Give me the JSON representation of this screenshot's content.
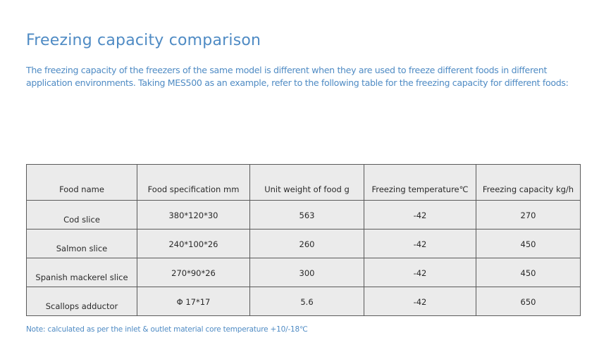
{
  "title": "Freezing capacity comparison",
  "intro": {
    "line1": "The freezing capacity of the freezers of the same model is different when they are used to freeze different foods in different",
    "line2": "application environments. Taking MES500 as an example, refer to the following table for the freezing capacity for different foods:"
  },
  "table": {
    "headers": [
      "Food name",
      "Food specification mm",
      "Unit weight of food g",
      "Freezing temperature℃",
      "Freezing capacity kg/h"
    ],
    "rows": [
      [
        "Cod slice",
        "380*120*30",
        "563",
        "-42",
        "270"
      ],
      [
        "Salmon slice",
        "240*100*26",
        "260",
        "-42",
        "450"
      ],
      [
        "Spanish mackerel slice",
        "270*90*26",
        "300",
        "-42",
        "450"
      ],
      [
        "Scallops adductor",
        "Φ 17*17",
        "5.6",
        "-42",
        "650"
      ]
    ]
  },
  "note": "Note: calculated as per the inlet & outlet material core temperature +10/-18℃",
  "colors": {
    "accent": "#4f8bc4",
    "table_background": "#ebebeb",
    "table_border": "#5a5a5a"
  }
}
